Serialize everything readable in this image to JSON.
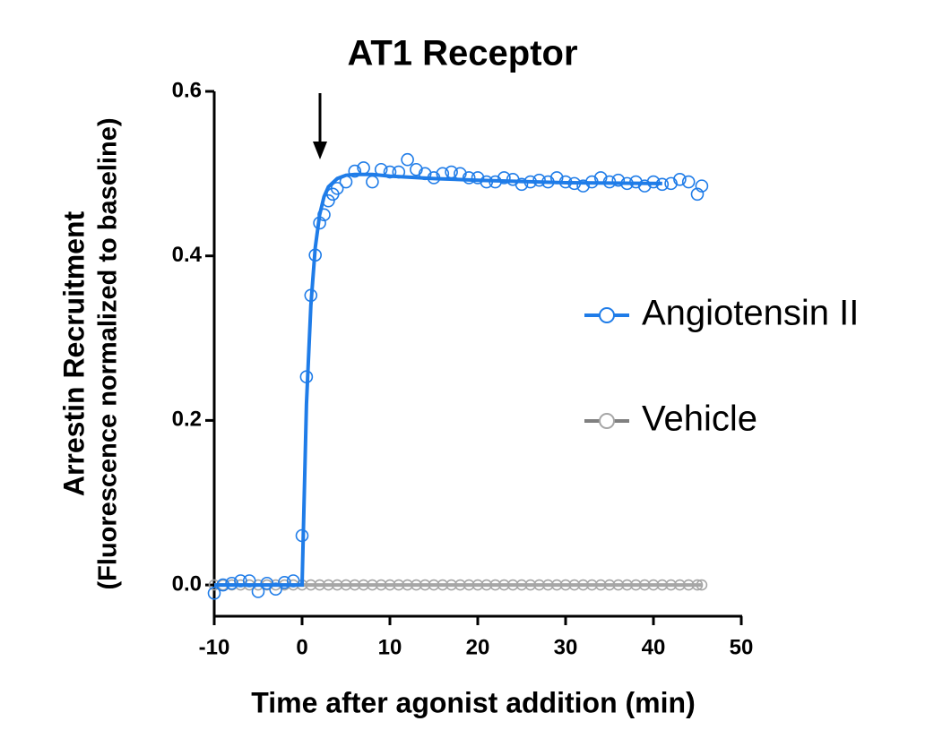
{
  "chart_data": {
    "type": "scatter",
    "title": "AT1 Receptor",
    "xlabel": "Time after agonist addition (min)",
    "ylabel": [
      "Arrestin Recruitment",
      "(Fluorescence normalized to baseline)"
    ],
    "xlim": [
      -10,
      50
    ],
    "ylim": [
      -0.038,
      0.6
    ],
    "xticks": [
      -10,
      0,
      10,
      20,
      30,
      40,
      50
    ],
    "yticks": [
      {
        "value": 0,
        "label": "0.0"
      },
      0.2,
      0.4,
      0.6
    ],
    "series": [
      {
        "name": "Angiotensin II",
        "color": "#1f7ce8",
        "x": [
          -10,
          -9,
          -8,
          -7,
          -6,
          -5,
          -4,
          -3,
          -2,
          -1,
          0,
          0.5,
          1,
          1.5,
          2,
          2.5,
          3,
          3.5,
          4,
          5,
          6,
          7,
          8,
          9,
          10,
          11,
          12,
          13,
          14,
          15,
          16,
          17,
          18,
          19,
          20,
          21,
          22,
          23,
          24,
          25,
          26,
          27,
          28,
          29,
          30,
          31,
          32,
          33,
          34,
          35,
          36,
          37,
          38,
          39,
          40,
          41,
          42,
          43,
          44,
          45,
          45.5
        ],
        "values": [
          -0.01,
          0,
          0.002,
          0.005,
          0.005,
          -0.008,
          0.002,
          -0.005,
          0.003,
          0.005,
          0.06,
          0.253,
          0.352,
          0.401,
          0.44,
          0.45,
          0.467,
          0.475,
          0.482,
          0.49,
          0.503,
          0.507,
          0.49,
          0.505,
          0.502,
          0.502,
          0.517,
          0.505,
          0.5,
          0.495,
          0.5,
          0.502,
          0.5,
          0.495,
          0.495,
          0.49,
          0.49,
          0.495,
          0.493,
          0.487,
          0.49,
          0.492,
          0.49,
          0.495,
          0.49,
          0.488,
          0.485,
          0.49,
          0.495,
          0.49,
          0.492,
          0.488,
          0.49,
          0.485,
          0.49,
          0.487,
          0.488,
          0.493,
          0.49,
          0.475,
          0.485
        ],
        "fit_x": [
          -10,
          0,
          0.5,
          1,
          1.5,
          2,
          2.5,
          3,
          4,
          5,
          6,
          8,
          10,
          15,
          20,
          30,
          41
        ],
        "fit_values": [
          0,
          0,
          0.22,
          0.34,
          0.41,
          0.45,
          0.472,
          0.484,
          0.494,
          0.498,
          0.499,
          0.499,
          0.497,
          0.494,
          0.492,
          0.489,
          0.488
        ]
      },
      {
        "name": "Vehicle",
        "color": "#a6a6a6",
        "x": [
          -10,
          -9,
          -8,
          -7,
          -6,
          -5,
          -4,
          -3,
          -2,
          -1,
          0,
          1,
          2,
          3,
          4,
          5,
          6,
          7,
          8,
          9,
          10,
          11,
          12,
          13,
          14,
          15,
          16,
          17,
          18,
          19,
          20,
          21,
          22,
          23,
          24,
          25,
          26,
          27,
          28,
          29,
          30,
          31,
          32,
          33,
          34,
          35,
          36,
          37,
          38,
          39,
          40,
          41,
          42,
          43,
          44,
          45,
          45.5
        ],
        "values": [
          0,
          0,
          0,
          0,
          0,
          0,
          0,
          0,
          0,
          0,
          0,
          0,
          0,
          0,
          0,
          0,
          0,
          0,
          0,
          0,
          0,
          0,
          0,
          0,
          0,
          0,
          0,
          0,
          0,
          0,
          0,
          0,
          0,
          0,
          0,
          0,
          0,
          0,
          0,
          0,
          0,
          0,
          0,
          0,
          0,
          0,
          0,
          0,
          0,
          0,
          0,
          0,
          0,
          0,
          0,
          0,
          0
        ]
      }
    ]
  }
}
